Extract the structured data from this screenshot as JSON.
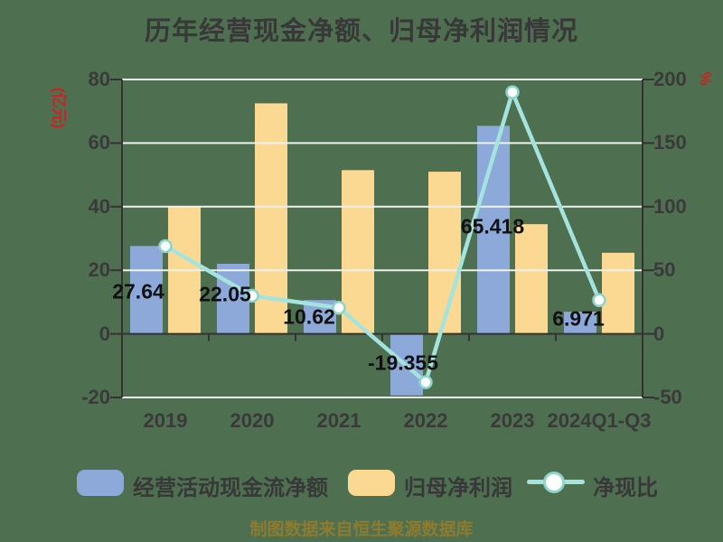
{
  "title": "历年经营现金净额、归母净利润情况",
  "footer": "制图数据来自恒生聚源数据库",
  "axes": {
    "left": {
      "unit": "(亿元)",
      "ticks": [
        80,
        60,
        40,
        20,
        0,
        -20
      ]
    },
    "right": {
      "unit": "%",
      "ticks": [
        200,
        150,
        100,
        50,
        0,
        -50
      ]
    }
  },
  "chart_data": {
    "type": "bar+line",
    "title": "历年经营现金净额、归母净利润情况",
    "categories": [
      "2019",
      "2020",
      "2021",
      "2022",
      "2023",
      "2024Q1-Q3"
    ],
    "series": [
      {
        "name": "经营活动现金流净额",
        "type": "bar",
        "axis": "left",
        "values": [
          27.64,
          22.05,
          10.62,
          -19.355,
          65.418,
          6.971
        ],
        "labels": [
          "27.64",
          "22.05",
          "10.62",
          "-19.355",
          "65.418",
          "6.971"
        ]
      },
      {
        "name": "归母净利润",
        "type": "bar",
        "axis": "left",
        "values": [
          40,
          72.5,
          51.5,
          51,
          34.5,
          25.5
        ]
      },
      {
        "name": "净现比",
        "type": "line",
        "axis": "right",
        "values": [
          69,
          30,
          20.5,
          -38,
          190,
          26.5
        ]
      }
    ],
    "left_ylim": [
      -20,
      80
    ],
    "right_ylim": [
      -50,
      200
    ],
    "left_ylabel": "(亿元)",
    "right_ylabel": "%",
    "grid": true,
    "legend_position": "bottom"
  },
  "colors": {
    "background": "#4f7050",
    "bar_operating_cash": "#8ca9d9",
    "bar_net_profit": "#fbd992",
    "line_net_cash_ratio": "#a5e3df",
    "line_marker_fill": "#fdfffd",
    "line_marker_stroke": "#8ed3cc",
    "grid_line": "#eef2ec",
    "axis_line": "#333333",
    "axis_text": "#3a3a3a",
    "value_label": "#111111",
    "unit_label": "#cc2222",
    "footer_text": "#8e7b2e"
  }
}
